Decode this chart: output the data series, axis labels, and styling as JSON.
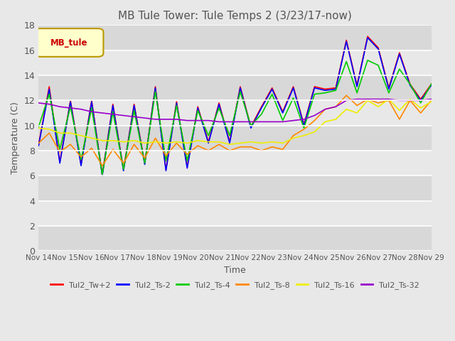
{
  "title": "MB Tule Tower: Tule Temps 2 (3/23/17-now)",
  "xlabel": "Time",
  "ylabel": "Temperature (C)",
  "ylim": [
    0,
    18
  ],
  "yticks": [
    0,
    2,
    4,
    6,
    8,
    10,
    12,
    14,
    16,
    18
  ],
  "background_color": "#e8e8e8",
  "plot_bg_color": "#e8e8e8",
  "legend_label": "MB_tule",
  "series_order": [
    "Tul2_Tw+2",
    "Tul2_Ts-2",
    "Tul2_Ts-4",
    "Tul2_Ts-8",
    "Tul2_Ts-16",
    "Tul2_Ts-32"
  ],
  "series_colors": {
    "Tul2_Tw+2": "#ff0000",
    "Tul2_Ts-2": "#0000ff",
    "Tul2_Ts-4": "#00cc00",
    "Tul2_Ts-8": "#ff8800",
    "Tul2_Ts-16": "#eeee00",
    "Tul2_Ts-32": "#9900cc"
  },
  "x_labels": [
    "Nov 14",
    "Nov 15",
    "Nov 16",
    "Nov 17",
    "Nov 18",
    "Nov 19",
    "Nov 20",
    "Nov 21",
    "Nov 22",
    "Nov 23",
    "Nov 24",
    "Nov 25",
    "Nov 26",
    "Nov 27",
    "Nov 28",
    "Nov 29"
  ],
  "stripe_colors": [
    "#d8d8d8",
    "#e8e8e8"
  ],
  "data": {
    "Tul2_Tw+2": [
      8.5,
      13.1,
      7.1,
      12.0,
      6.9,
      12.0,
      6.1,
      11.7,
      6.5,
      11.7,
      7.0,
      13.1,
      6.5,
      11.9,
      6.7,
      11.5,
      8.7,
      11.8,
      8.7,
      13.1,
      9.9,
      11.5,
      13.0,
      11.1,
      13.1,
      10.1,
      13.1,
      12.9,
      13.0,
      16.8,
      13.2,
      17.1,
      16.2,
      13.0,
      15.8,
      13.3,
      12.1,
      13.3
    ],
    "Tul2_Ts-2": [
      8.4,
      12.9,
      7.0,
      11.9,
      6.8,
      11.9,
      6.0,
      11.6,
      6.4,
      11.6,
      6.9,
      13.0,
      6.4,
      11.8,
      6.6,
      11.4,
      8.6,
      11.7,
      8.6,
      13.0,
      9.8,
      11.4,
      12.9,
      11.0,
      13.0,
      10.0,
      13.0,
      12.8,
      12.9,
      16.7,
      13.1,
      17.0,
      16.1,
      12.9,
      15.7,
      13.2,
      12.0,
      13.2
    ],
    "Tul2_Ts-4": [
      9.9,
      12.5,
      8.1,
      11.5,
      7.3,
      11.4,
      6.1,
      11.1,
      6.5,
      11.2,
      7.0,
      12.7,
      7.2,
      11.6,
      7.2,
      11.2,
      9.2,
      11.4,
      9.2,
      12.7,
      10.0,
      10.9,
      12.5,
      10.4,
      12.2,
      9.8,
      12.5,
      12.6,
      12.8,
      15.1,
      12.6,
      15.2,
      14.8,
      12.6,
      14.5,
      13.3,
      11.8,
      13.3
    ],
    "Tul2_Ts-8": [
      8.6,
      9.4,
      7.9,
      8.5,
      7.5,
      8.2,
      6.8,
      8.1,
      7.0,
      8.5,
      7.4,
      9.0,
      7.6,
      8.6,
      7.7,
      8.4,
      8.0,
      8.5,
      8.0,
      8.3,
      8.3,
      8.0,
      8.3,
      8.1,
      9.2,
      9.7,
      10.4,
      11.3,
      11.5,
      12.4,
      11.6,
      12.1,
      11.8,
      12.0,
      10.5,
      12.0,
      11.0,
      12.0
    ],
    "Tul2_Ts-16": [
      9.8,
      9.7,
      9.4,
      9.4,
      9.2,
      9.0,
      8.8,
      8.8,
      8.7,
      8.8,
      8.6,
      8.7,
      8.6,
      8.7,
      8.6,
      8.8,
      8.7,
      8.7,
      8.5,
      8.6,
      8.7,
      8.6,
      8.7,
      8.6,
      9.0,
      9.2,
      9.5,
      10.3,
      10.5,
      11.3,
      11.0,
      12.0,
      11.5,
      12.1,
      11.2,
      12.1,
      11.4,
      11.9
    ],
    "Tul2_Ts-32": [
      11.8,
      11.7,
      11.5,
      11.4,
      11.3,
      11.1,
      11.0,
      10.9,
      10.8,
      10.7,
      10.6,
      10.5,
      10.5,
      10.5,
      10.4,
      10.4,
      10.4,
      10.3,
      10.3,
      10.3,
      10.3,
      10.3,
      10.3,
      10.3,
      10.4,
      10.5,
      10.8,
      11.3,
      11.5,
      12.0,
      12.1,
      12.1,
      12.1,
      12.1,
      12.0,
      12.0,
      12.0,
      12.1
    ]
  }
}
